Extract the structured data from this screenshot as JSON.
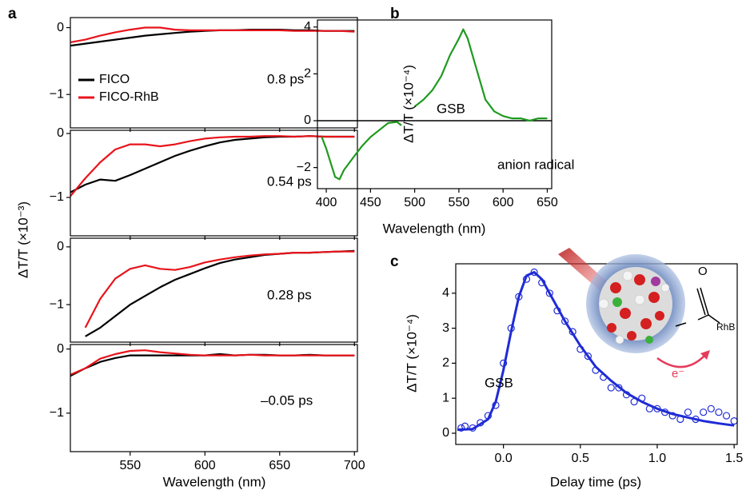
{
  "chart_data": [
    {
      "type": "line",
      "panel": "a",
      "x": [
        510,
        520,
        530,
        540,
        550,
        560,
        570,
        580,
        590,
        600,
        610,
        620,
        630,
        640,
        650,
        660,
        670,
        680,
        690,
        700
      ],
      "series": [
        {
          "name": "FICO",
          "color": "#000000",
          "values": [
            -0.27,
            -0.24,
            -0.21,
            -0.18,
            -0.15,
            -0.12,
            -0.1,
            -0.08,
            -0.06,
            -0.05,
            -0.04,
            -0.04,
            -0.03,
            -0.03,
            -0.03,
            -0.04,
            -0.04,
            -0.05,
            -0.05,
            -0.05
          ]
        },
        {
          "name": "FICO-RhB",
          "color": "#e8141b",
          "values": [
            -0.22,
            -0.18,
            -0.12,
            -0.07,
            -0.03,
            0.0,
            0.0,
            -0.03,
            -0.04,
            -0.04,
            -0.04,
            -0.04,
            -0.04,
            -0.04,
            -0.04,
            -0.05,
            -0.05,
            -0.05,
            -0.05,
            -0.06
          ]
        }
      ],
      "xlim": [
        510,
        702
      ],
      "ylim": [
        -1.5,
        0.15
      ],
      "yticks": [
        0,
        {
          "value": -1,
          "label": "−1"
        }
      ],
      "annotation": "0.8 ps",
      "legend": "upper left"
    },
    {
      "type": "line",
      "x": [
        510,
        520,
        530,
        540,
        550,
        560,
        570,
        580,
        590,
        600,
        610,
        620,
        630,
        640,
        650,
        660,
        670,
        680,
        690,
        700
      ],
      "series": [
        {
          "color": "#000000",
          "values": [
            -0.92,
            -0.8,
            -0.72,
            -0.74,
            -0.65,
            -0.55,
            -0.45,
            -0.35,
            -0.27,
            -0.2,
            -0.14,
            -0.1,
            -0.08,
            -0.06,
            -0.05,
            -0.05,
            -0.04,
            -0.05,
            -0.05,
            -0.05
          ]
        },
        {
          "color": "#e8141b",
          "values": [
            -0.98,
            -0.7,
            -0.45,
            -0.25,
            -0.17,
            -0.17,
            -0.2,
            -0.17,
            -0.12,
            -0.08,
            -0.06,
            -0.05,
            -0.05,
            -0.04,
            -0.04,
            -0.05,
            -0.04,
            -0.05,
            -0.05,
            -0.05
          ]
        }
      ],
      "xlim": [
        510,
        702
      ],
      "ylim": [
        -1.6,
        0.05
      ],
      "yticks": [
        0,
        {
          "value": -1,
          "label": "−1"
        }
      ],
      "annotation": "0.54 ps",
      "ylabel": "ΔT/T (×10⁻³)"
    },
    {
      "type": "line",
      "x": [
        510,
        520,
        530,
        540,
        550,
        560,
        570,
        580,
        590,
        600,
        610,
        620,
        630,
        640,
        650,
        660,
        670,
        680,
        690,
        700
      ],
      "series": [
        {
          "color": "#000000",
          "values": [
            null,
            -1.55,
            -1.4,
            -1.2,
            -1.0,
            -0.85,
            -0.7,
            -0.57,
            -0.47,
            -0.37,
            -0.28,
            -0.22,
            -0.18,
            -0.14,
            -0.12,
            -0.1,
            -0.1,
            -0.09,
            -0.08,
            -0.07
          ]
        },
        {
          "color": "#e8141b",
          "values": [
            null,
            -1.4,
            -0.9,
            -0.55,
            -0.38,
            -0.32,
            -0.38,
            -0.4,
            -0.35,
            -0.27,
            -0.22,
            -0.18,
            -0.15,
            -0.13,
            -0.12,
            -0.1,
            -0.1,
            -0.09,
            -0.08,
            -0.08
          ]
        }
      ],
      "xlim": [
        510,
        702
      ],
      "ylim": [
        -1.65,
        0.15
      ],
      "yticks": [
        0,
        {
          "value": -1,
          "label": "−1"
        }
      ],
      "annotation": "0.28 ps"
    },
    {
      "type": "line",
      "x": [
        510,
        520,
        530,
        540,
        550,
        560,
        570,
        580,
        590,
        600,
        610,
        620,
        630,
        640,
        650,
        660,
        670,
        680,
        690,
        700
      ],
      "series": [
        {
          "color": "#000000",
          "values": [
            -0.42,
            -0.3,
            -0.2,
            -0.14,
            -0.1,
            -0.1,
            -0.1,
            -0.1,
            -0.1,
            -0.1,
            -0.08,
            -0.1,
            -0.09,
            -0.09,
            -0.1,
            -0.1,
            -0.09,
            -0.1,
            -0.1,
            -0.1
          ]
        },
        {
          "color": "#e8141b",
          "values": [
            -0.4,
            -0.3,
            -0.15,
            -0.08,
            -0.03,
            -0.02,
            -0.05,
            -0.07,
            -0.09,
            -0.1,
            -0.1,
            -0.1,
            -0.09,
            -0.1,
            -0.1,
            -0.1,
            -0.1,
            -0.1,
            -0.1,
            -0.1
          ]
        }
      ],
      "xlim": [
        510,
        702
      ],
      "ylim": [
        -1.6,
        0.07
      ],
      "yticks": [
        0,
        {
          "value": -1,
          "label": "−1"
        }
      ],
      "xticks": [
        550,
        600,
        650,
        700
      ],
      "annotation": "–0.05 ps",
      "xlabel": "Wavelength (nm)"
    },
    {
      "type": "line",
      "panel": "b",
      "x": [
        395,
        400,
        405,
        410,
        415,
        420,
        430,
        440,
        450,
        460,
        470,
        480,
        485,
        490,
        500,
        510,
        520,
        530,
        540,
        550,
        555,
        560,
        570,
        580,
        590,
        600,
        610,
        620,
        630,
        640,
        650
      ],
      "series": [
        {
          "color": "#1e9a1e",
          "values": [
            -0.7,
            -1.2,
            -1.8,
            -2.4,
            -2.5,
            -2.1,
            -1.6,
            -1.1,
            -0.7,
            -0.4,
            -0.1,
            -0.05,
            -0.2,
            null,
            0.6,
            0.9,
            1.3,
            1.9,
            2.8,
            3.5,
            3.9,
            3.5,
            2.2,
            0.9,
            0.4,
            0.2,
            0.1,
            0.1,
            0.0,
            0.1,
            0.1
          ]
        }
      ],
      "xlim": [
        390,
        655
      ],
      "ylim": [
        -2.9,
        4.3
      ],
      "xticks": [
        400,
        450,
        500,
        550,
        600,
        650
      ],
      "yticks": [
        4,
        2,
        0,
        {
          "value": -2,
          "label": "−2"
        }
      ],
      "hline": 0,
      "xlabel": "Wavelength (nm)",
      "ylabel": "ΔT/T (×10⁻⁴)",
      "annotations": [
        "GSB",
        "anion radical"
      ]
    },
    {
      "type": "scatter",
      "panel": "c",
      "series": [
        {
          "color": "#1f2bd6",
          "marker": "open-circle",
          "x": [
            -0.275,
            -0.25,
            -0.2,
            -0.15,
            -0.1,
            -0.05,
            0.0,
            0.05,
            0.1,
            0.15,
            0.2,
            0.25,
            0.3,
            0.35,
            0.4,
            0.45,
            0.5,
            0.55,
            0.6,
            0.65,
            0.7,
            0.75,
            0.8,
            0.85,
            0.9,
            0.95,
            1.0,
            1.05,
            1.1,
            1.15,
            1.2,
            1.25,
            1.3,
            1.35,
            1.4,
            1.45,
            1.5
          ],
          "values": [
            0.15,
            0.2,
            0.15,
            0.3,
            0.5,
            0.8,
            2.0,
            3.0,
            3.9,
            4.4,
            4.6,
            4.3,
            4.0,
            3.5,
            3.2,
            2.9,
            2.4,
            2.2,
            1.8,
            1.6,
            1.3,
            1.3,
            1.1,
            0.9,
            1.0,
            0.7,
            0.7,
            0.6,
            0.5,
            0.4,
            0.6,
            0.4,
            0.6,
            0.7,
            0.6,
            0.5,
            0.35
          ]
        },
        {
          "color": "#1f2bd6",
          "marker": "line",
          "x": [
            -0.3,
            -0.2,
            -0.1,
            -0.05,
            0.0,
            0.05,
            0.1,
            0.15,
            0.2,
            0.25,
            0.3,
            0.4,
            0.5,
            0.6,
            0.7,
            0.8,
            0.9,
            1.0,
            1.1,
            1.2,
            1.3,
            1.4,
            1.5
          ],
          "values": [
            0.1,
            0.12,
            0.4,
            0.9,
            1.8,
            2.9,
            3.9,
            4.5,
            4.6,
            4.4,
            4.0,
            3.2,
            2.5,
            1.9,
            1.5,
            1.15,
            0.9,
            0.7,
            0.55,
            0.45,
            0.35,
            0.28,
            0.22
          ]
        }
      ],
      "xlim": [
        -0.31,
        1.52
      ],
      "ylim": [
        -0.32,
        4.84
      ],
      "xticks": [
        {
          "value": 0,
          "label": "0.0"
        },
        0.5,
        {
          "value": 1,
          "label": "1.0"
        },
        1.5
      ],
      "yticks": [
        0,
        1,
        2,
        3,
        4
      ],
      "xlabel": "Delay time (ps)",
      "ylabel": "ΔT/T (×10⁻⁴)",
      "annotations": [
        "GSB"
      ],
      "inset_labels": [
        "O",
        "RhB",
        "e⁻"
      ]
    }
  ]
}
